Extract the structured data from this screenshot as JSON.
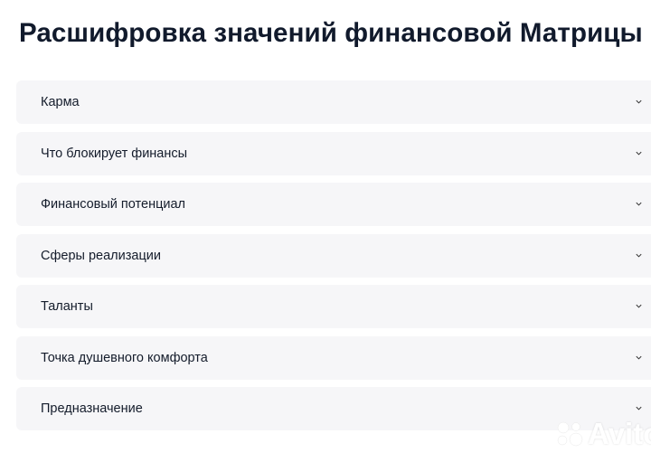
{
  "title": "Расшифровка значений финансовой Матрицы",
  "accordion": [
    {
      "label": "Карма",
      "expanded": false
    },
    {
      "label": "Что блокирует финансы",
      "expanded": false
    },
    {
      "label": "Финансовый потенциал",
      "expanded": false
    },
    {
      "label": "Сферы реализации",
      "expanded": false
    },
    {
      "label": "Таланты",
      "expanded": false
    },
    {
      "label": "Точка душевного комфорта",
      "expanded": false
    },
    {
      "label": "Предназначение",
      "expanded": false
    }
  ],
  "icons": {
    "toggle": "chevron-down-icon"
  },
  "watermark": "Avito",
  "colors": {
    "row_bg": "#f6f6f8",
    "title": "#111a2c"
  }
}
